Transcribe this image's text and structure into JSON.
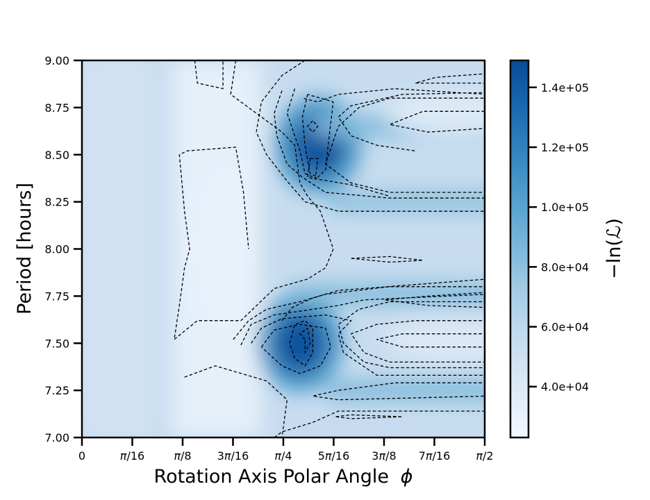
{
  "chart_data": {
    "type": "heatmap",
    "title": "",
    "xlabel": "Rotation Axis Polar Angle",
    "xlabel_symbol": "ϕ",
    "ylabel": "Period [hours]",
    "xlim": [
      0,
      1.5708
    ],
    "ylim": [
      7.0,
      9.0
    ],
    "x_ticks": [
      "0",
      "π/16",
      "π/8",
      "3π/16",
      "π/4",
      "5π/16",
      "3π/8",
      "7π/16",
      "π/2"
    ],
    "y_ticks": [
      "7.00",
      "7.25",
      "7.50",
      "7.75",
      "8.00",
      "8.25",
      "8.50",
      "8.75",
      "9.00"
    ],
    "colorbar": {
      "label": "−ln(ℒ)",
      "colormap": "Blues",
      "range": [
        23000,
        149000
      ],
      "ticks": [
        "4.0e+04",
        "6.0e+04",
        "8.0e+04",
        "1.0e+05",
        "1.2e+05",
        "1.4e+05"
      ],
      "tick_values": [
        40000,
        60000,
        80000,
        100000,
        120000,
        140000
      ]
    },
    "features": [
      {
        "kind": "peak",
        "x": 0.92,
        "y": 8.55,
        "value": 145000
      },
      {
        "kind": "peak",
        "x": 0.85,
        "y": 7.5,
        "value": 145000
      },
      {
        "kind": "band",
        "y": 8.65,
        "x_from": 0.9,
        "x_to": 1.5708,
        "value": 85000
      },
      {
        "kind": "band",
        "y": 7.76,
        "x_from": 0.8,
        "x_to": 1.5708,
        "value": 85000
      },
      {
        "kind": "band",
        "y": 7.25,
        "x_from": 0.95,
        "x_to": 1.5708,
        "value": 85000
      },
      {
        "kind": "band",
        "y": 8.25,
        "x_from": 0.95,
        "x_to": 1.5708,
        "value": 80000
      },
      {
        "kind": "trough",
        "y": 8.72,
        "x_from": 1.15,
        "x_to": 1.5708,
        "value": 38000
      },
      {
        "kind": "trough",
        "y": 7.52,
        "x_from": 1.15,
        "x_to": 1.5708,
        "value": 40000
      },
      {
        "kind": "trough",
        "x": 0.55,
        "y": 8.0,
        "value": 30000
      }
    ]
  }
}
